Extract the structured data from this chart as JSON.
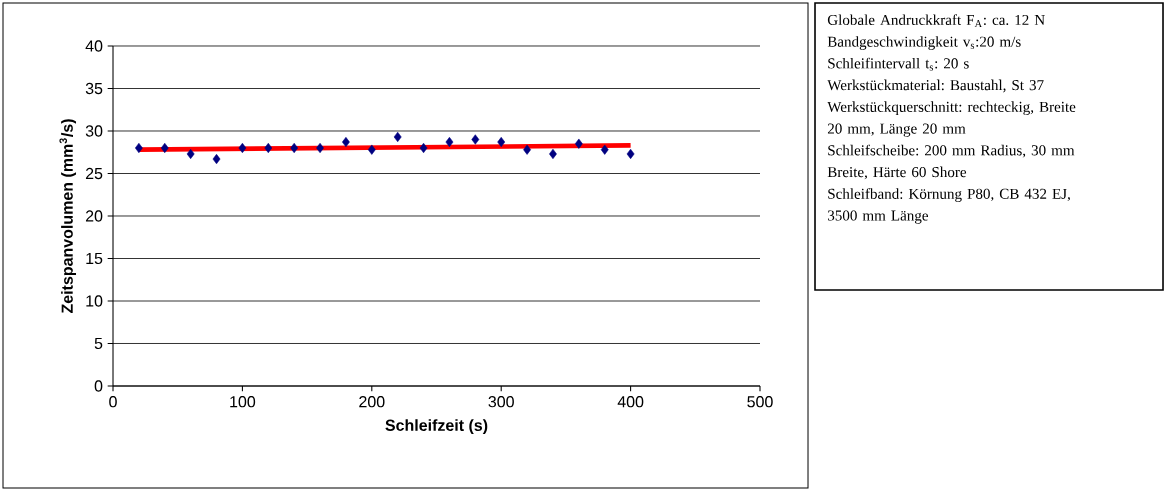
{
  "chart_data": {
    "type": "scatter",
    "xlabel": "Schleifzeit (s)",
    "ylabel": "Zeitspanvolumen (mm$^{3}$/s)",
    "x": [
      20,
      40,
      60,
      80,
      100,
      120,
      140,
      160,
      180,
      200,
      220,
      240,
      260,
      280,
      300,
      320,
      340,
      360,
      380,
      400
    ],
    "series": [
      {
        "color": "#000080",
        "marker": "diamond",
        "values": [
          28.0,
          28.0,
          27.3,
          26.7,
          28.0,
          28.0,
          28.0,
          28.0,
          28.7,
          27.8,
          29.3,
          28.0,
          28.7,
          29.0,
          28.7,
          27.8,
          27.3,
          28.5,
          27.8,
          27.3
        ]
      },
      {
        "type": "line",
        "color": "#ff0000",
        "marker": "none",
        "line_style": "solid",
        "x": [
          20,
          400
        ],
        "values": [
          27.8,
          28.3
        ]
      }
    ],
    "xlim": [
      0,
      500
    ],
    "xticks": [
      0,
      100,
      200,
      300,
      400,
      500
    ],
    "ylim": [
      0,
      40
    ],
    "yticks": [
      0,
      5,
      10,
      15,
      20,
      25,
      30,
      35,
      40
    ],
    "grid": "y",
    "annotations": [
      "Globale Andruckkraft F$_{A}$: ca. 12 N",
      "Bandgeschwindigkeit v$_{s}$:20 m/s",
      "Schleifintervall t$_{s}$:  20 s",
      "Werkstückmaterial: Baustahl, St 37",
      "Werkstückquerschnitt: rechteckig, Breite 20 mm, Länge 20 mm",
      "Schleifscheibe: 200 mm Radius, 30 mm Breite, Härte 60 Shore",
      "Schleifband: Körnung P80, CB 432 EJ, 3500 mm Länge"
    ]
  }
}
